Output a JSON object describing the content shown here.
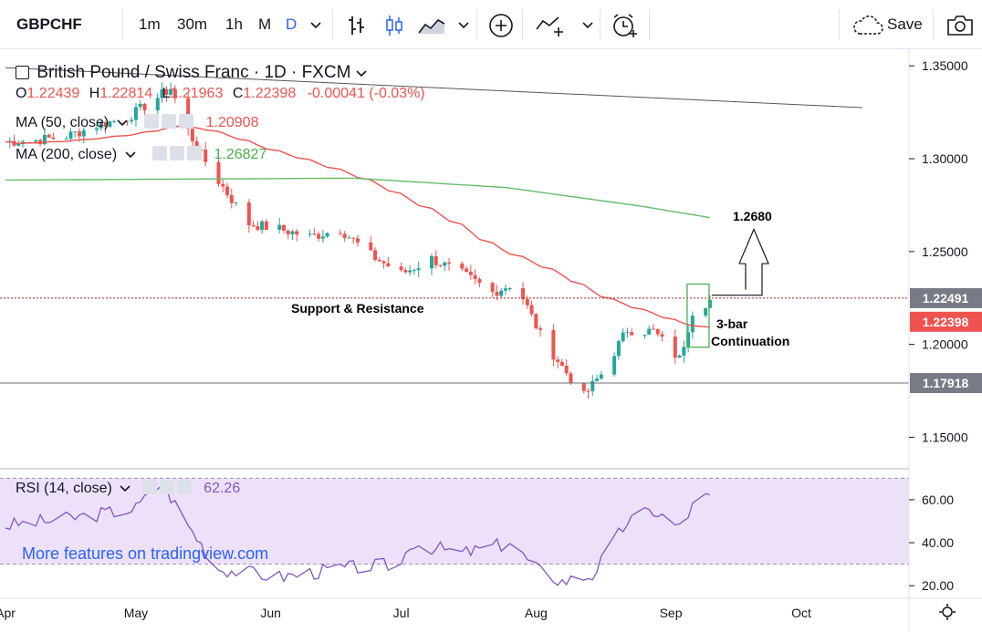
{
  "toolbar": {
    "symbol": "GBPCHF",
    "intervals": [
      "1m",
      "30m",
      "1h",
      "M",
      "D"
    ],
    "active_interval": "D",
    "save_label": "Save",
    "icons": [
      "bars-style-icon",
      "candles-style-icon",
      "area-style-icon",
      "chevron-down-icon",
      "add-indicator-icon",
      "compare-icon",
      "alert-icon",
      "cloud-icon",
      "camera-icon"
    ]
  },
  "legend": {
    "title": "British Pound / Swiss Franc · 1D · FXCM",
    "ohlc": {
      "o_label": "O",
      "o_value": "1.22439",
      "h_label": "H",
      "h_value": "1.22814",
      "l_label": "L",
      "l_value": "1.21963",
      "c_label": "C",
      "c_value": "1.22398",
      "change": "-0.00041 (-0.03%)"
    },
    "ma50": {
      "label": "MA (50, close)",
      "value": "1.20908"
    },
    "ma200": {
      "label": "MA (200, close)",
      "value": "1.26827"
    },
    "rsi": {
      "label": "RSI (14, close)",
      "value": "62.26"
    }
  },
  "watermark": "More features on tradingview.com",
  "colors": {
    "up": "#26a69a",
    "down": "#ef5350",
    "ma50": "#ef5350",
    "ma200": "#66bb6a",
    "rsi_line": "#7e57c2",
    "rsi_band": "#ede1fa",
    "box": "#4caf50",
    "price_tag": "#ef5350",
    "accent": "#2962ff"
  },
  "chart_data": [
    {
      "type": "candlestick",
      "title": "British Pound / Swiss Franc · 1D · FXCM",
      "ylim": [
        1.135,
        1.355
      ],
      "y_ticks": [
        "1.35000",
        "1.30000",
        "1.25000",
        "1.20000",
        "1.15000"
      ],
      "x_ticks": [
        "Apr",
        "May",
        "Jun",
        "Jul",
        "Aug",
        "Sep",
        "Oct"
      ],
      "series": [
        {
          "name": "price",
          "anchors": [
            [
              "2019-04-01",
              1.309
            ],
            [
              "2019-04-08",
              1.31
            ],
            [
              "2019-04-15",
              1.312
            ],
            [
              "2019-04-22",
              1.318
            ],
            [
              "2019-04-29",
              1.322
            ],
            [
              "2019-05-06",
              1.333
            ],
            [
              "2019-05-09",
              1.338
            ],
            [
              "2019-05-13",
              1.315
            ],
            [
              "2019-05-16",
              1.302
            ],
            [
              "2019-05-20",
              1.288
            ],
            [
              "2019-05-27",
              1.265
            ],
            [
              "2019-06-03",
              1.262
            ],
            [
              "2019-06-10",
              1.258
            ],
            [
              "2019-06-17",
              1.262
            ],
            [
              "2019-06-24",
              1.248
            ],
            [
              "2019-07-01",
              1.238
            ],
            [
              "2019-07-08",
              1.246
            ],
            [
              "2019-07-15",
              1.238
            ],
            [
              "2019-07-22",
              1.228
            ],
            [
              "2019-07-26",
              1.232
            ],
            [
              "2019-07-29",
              1.225
            ],
            [
              "2019-08-02",
              1.205
            ],
            [
              "2019-08-07",
              1.188
            ],
            [
              "2019-08-12",
              1.172
            ],
            [
              "2019-08-16",
              1.184
            ],
            [
              "2019-08-22",
              1.208
            ],
            [
              "2019-08-28",
              1.207
            ],
            [
              "2019-09-03",
              1.192
            ],
            [
              "2019-09-06",
              1.218
            ],
            [
              "2019-09-10",
              1.224
            ]
          ]
        },
        {
          "name": "MA (50, close)",
          "last_value": 1.20908
        },
        {
          "name": "MA (200, close)",
          "last_value": 1.26827
        }
      ],
      "levels": [
        {
          "label": "1.22491",
          "value": 1.22491,
          "style": "dotted"
        },
        {
          "label": "1.17918",
          "value": 1.17918,
          "style": "solid"
        }
      ],
      "last_price": {
        "label": "1.22398",
        "value": 1.22398
      },
      "trendline": {
        "from": [
          "2019-04-01",
          1.349
        ],
        "to": [
          "2019-10-15",
          1.3275
        ]
      },
      "annotations": {
        "support_resistance": "Support & Resistance",
        "pattern": [
          "3-bar",
          "Continuation"
        ],
        "target": "1.2680"
      }
    },
    {
      "type": "line",
      "title": "RSI (14, close)",
      "ylim": [
        15,
        71
      ],
      "y_ticks": [
        "60.00",
        "40.00",
        "20.00"
      ],
      "band": [
        30,
        70
      ],
      "last_value": 62.26,
      "anchors": [
        [
          "2019-04-01",
          48
        ],
        [
          "2019-04-15",
          51
        ],
        [
          "2019-05-01",
          56
        ],
        [
          "2019-05-07",
          68
        ],
        [
          "2019-05-13",
          48
        ],
        [
          "2019-05-20",
          28
        ],
        [
          "2019-06-03",
          24
        ],
        [
          "2019-06-17",
          28
        ],
        [
          "2019-07-01",
          30
        ],
        [
          "2019-07-03",
          40
        ],
        [
          "2019-07-15",
          35
        ],
        [
          "2019-07-26",
          40
        ],
        [
          "2019-08-01",
          28
        ],
        [
          "2019-08-07",
          22
        ],
        [
          "2019-08-14",
          25
        ],
        [
          "2019-08-22",
          50
        ],
        [
          "2019-08-28",
          55
        ],
        [
          "2019-09-03",
          47
        ],
        [
          "2019-09-07",
          60
        ],
        [
          "2019-09-10",
          62.26
        ]
      ]
    }
  ]
}
